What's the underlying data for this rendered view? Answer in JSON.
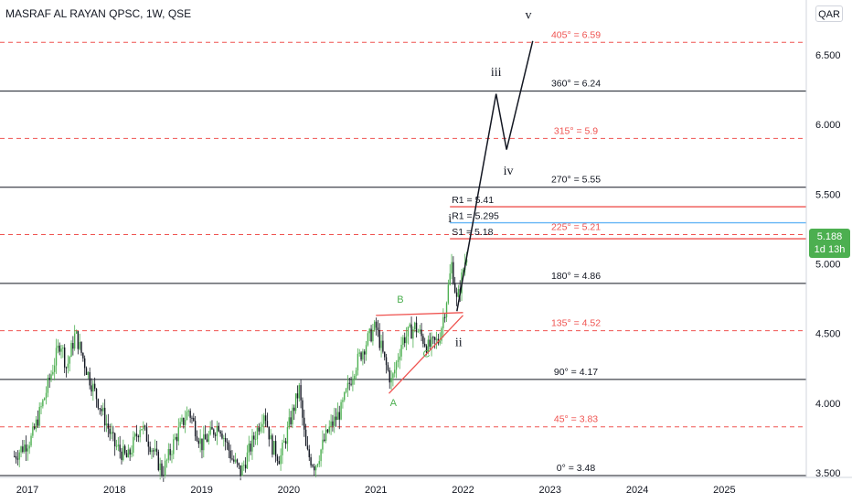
{
  "header": {
    "title": "MASRAF AL RAYAN QPSC, 1W, QSE",
    "currency": "QAR"
  },
  "price_tag": {
    "price": "5.188",
    "countdown": "1d 13h"
  },
  "colors": {
    "candle_up": "#4caf50",
    "candle_down": "#131722",
    "solid_level": "#131722",
    "dashed_level": "#ef5350",
    "pivot_r1_red": "#ef5350",
    "pivot_r1_blue": "#64b5f6",
    "pivot_s1": "#ef5350",
    "abc_label": "#4caf50",
    "wave_line": "#131722"
  },
  "chart_data": {
    "type": "candlestick",
    "interval": "1W",
    "xlabels": [
      "2017",
      "2018",
      "2019",
      "2020",
      "2021",
      "2022",
      "2023",
      "2024",
      "2025"
    ],
    "yticks": [
      "3.500",
      "4.000",
      "4.500",
      "5.000",
      "5.500",
      "6.000",
      "6.500"
    ],
    "ylim": [
      3.47,
      6.72
    ],
    "last_price": 5.188,
    "levels": [
      {
        "label": "405° = 6.59",
        "value": 6.59,
        "style": "dashed"
      },
      {
        "label": "360° = 6.24",
        "value": 6.24,
        "style": "solid"
      },
      {
        "label": "315° = 5.9",
        "value": 5.9,
        "style": "dashed"
      },
      {
        "label": "270° = 5.55",
        "value": 5.55,
        "style": "solid"
      },
      {
        "label": "225° = 5.21",
        "value": 5.21,
        "style": "dashed"
      },
      {
        "label": "180° = 4.86",
        "value": 4.86,
        "style": "solid"
      },
      {
        "label": "135° = 4.52",
        "value": 4.52,
        "style": "dashed"
      },
      {
        "label": "90° = 4.17",
        "value": 4.17,
        "style": "solid"
      },
      {
        "label": "45° = 3.83",
        "value": 3.83,
        "style": "dashed"
      },
      {
        "label": "0° = 3.48",
        "value": 3.48,
        "style": "solid"
      }
    ],
    "pivots": [
      {
        "label": "R1 = 5.41",
        "value": 5.41,
        "color": "red"
      },
      {
        "label": "R1 = 5.295",
        "value": 5.295,
        "color": "blue"
      },
      {
        "label": "S1 = 5.18",
        "value": 5.18,
        "color": "red"
      }
    ],
    "elliott_labels": [
      "i",
      "ii",
      "iii",
      "iv",
      "v"
    ],
    "abc_labels": [
      "A",
      "B",
      "C"
    ],
    "wave_projection": [
      {
        "date": "2021-10",
        "value": 4.65
      },
      {
        "date": "2022-07",
        "value": 6.22
      },
      {
        "date": "2022-09",
        "value": 5.82
      },
      {
        "date": "2022-12",
        "value": 6.6
      }
    ]
  }
}
